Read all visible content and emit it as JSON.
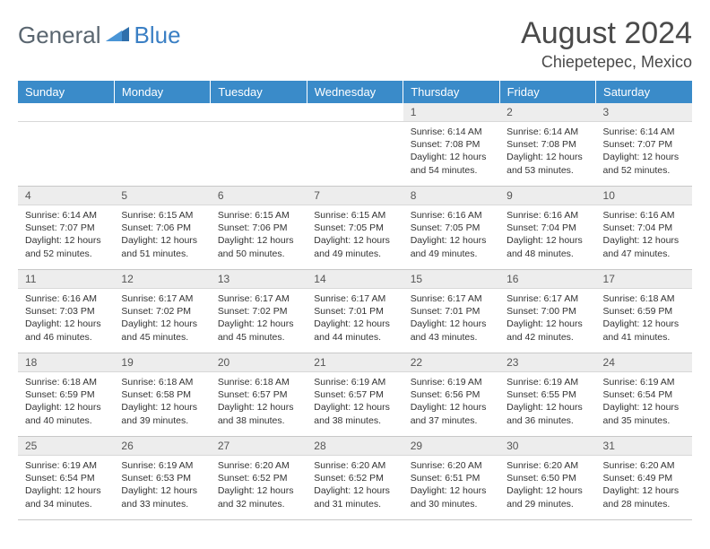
{
  "logo": {
    "text1": "General",
    "text2": "Blue"
  },
  "title": "August 2024",
  "location": "Chiepetepec, Mexico",
  "colors": {
    "header_bg": "#3a8bc9",
    "header_text": "#ffffff",
    "daynum_bg": "#ededed",
    "logo_gray": "#5a6670",
    "logo_blue": "#3a7fc4"
  },
  "weekdays": [
    "Sunday",
    "Monday",
    "Tuesday",
    "Wednesday",
    "Thursday",
    "Friday",
    "Saturday"
  ],
  "weeks": [
    [
      null,
      null,
      null,
      null,
      {
        "n": "1",
        "sr": "6:14 AM",
        "ss": "7:08 PM",
        "dl": "12 hours and 54 minutes."
      },
      {
        "n": "2",
        "sr": "6:14 AM",
        "ss": "7:08 PM",
        "dl": "12 hours and 53 minutes."
      },
      {
        "n": "3",
        "sr": "6:14 AM",
        "ss": "7:07 PM",
        "dl": "12 hours and 52 minutes."
      }
    ],
    [
      {
        "n": "4",
        "sr": "6:14 AM",
        "ss": "7:07 PM",
        "dl": "12 hours and 52 minutes."
      },
      {
        "n": "5",
        "sr": "6:15 AM",
        "ss": "7:06 PM",
        "dl": "12 hours and 51 minutes."
      },
      {
        "n": "6",
        "sr": "6:15 AM",
        "ss": "7:06 PM",
        "dl": "12 hours and 50 minutes."
      },
      {
        "n": "7",
        "sr": "6:15 AM",
        "ss": "7:05 PM",
        "dl": "12 hours and 49 minutes."
      },
      {
        "n": "8",
        "sr": "6:16 AM",
        "ss": "7:05 PM",
        "dl": "12 hours and 49 minutes."
      },
      {
        "n": "9",
        "sr": "6:16 AM",
        "ss": "7:04 PM",
        "dl": "12 hours and 48 minutes."
      },
      {
        "n": "10",
        "sr": "6:16 AM",
        "ss": "7:04 PM",
        "dl": "12 hours and 47 minutes."
      }
    ],
    [
      {
        "n": "11",
        "sr": "6:16 AM",
        "ss": "7:03 PM",
        "dl": "12 hours and 46 minutes."
      },
      {
        "n": "12",
        "sr": "6:17 AM",
        "ss": "7:02 PM",
        "dl": "12 hours and 45 minutes."
      },
      {
        "n": "13",
        "sr": "6:17 AM",
        "ss": "7:02 PM",
        "dl": "12 hours and 45 minutes."
      },
      {
        "n": "14",
        "sr": "6:17 AM",
        "ss": "7:01 PM",
        "dl": "12 hours and 44 minutes."
      },
      {
        "n": "15",
        "sr": "6:17 AM",
        "ss": "7:01 PM",
        "dl": "12 hours and 43 minutes."
      },
      {
        "n": "16",
        "sr": "6:17 AM",
        "ss": "7:00 PM",
        "dl": "12 hours and 42 minutes."
      },
      {
        "n": "17",
        "sr": "6:18 AM",
        "ss": "6:59 PM",
        "dl": "12 hours and 41 minutes."
      }
    ],
    [
      {
        "n": "18",
        "sr": "6:18 AM",
        "ss": "6:59 PM",
        "dl": "12 hours and 40 minutes."
      },
      {
        "n": "19",
        "sr": "6:18 AM",
        "ss": "6:58 PM",
        "dl": "12 hours and 39 minutes."
      },
      {
        "n": "20",
        "sr": "6:18 AM",
        "ss": "6:57 PM",
        "dl": "12 hours and 38 minutes."
      },
      {
        "n": "21",
        "sr": "6:19 AM",
        "ss": "6:57 PM",
        "dl": "12 hours and 38 minutes."
      },
      {
        "n": "22",
        "sr": "6:19 AM",
        "ss": "6:56 PM",
        "dl": "12 hours and 37 minutes."
      },
      {
        "n": "23",
        "sr": "6:19 AM",
        "ss": "6:55 PM",
        "dl": "12 hours and 36 minutes."
      },
      {
        "n": "24",
        "sr": "6:19 AM",
        "ss": "6:54 PM",
        "dl": "12 hours and 35 minutes."
      }
    ],
    [
      {
        "n": "25",
        "sr": "6:19 AM",
        "ss": "6:54 PM",
        "dl": "12 hours and 34 minutes."
      },
      {
        "n": "26",
        "sr": "6:19 AM",
        "ss": "6:53 PM",
        "dl": "12 hours and 33 minutes."
      },
      {
        "n": "27",
        "sr": "6:20 AM",
        "ss": "6:52 PM",
        "dl": "12 hours and 32 minutes."
      },
      {
        "n": "28",
        "sr": "6:20 AM",
        "ss": "6:52 PM",
        "dl": "12 hours and 31 minutes."
      },
      {
        "n": "29",
        "sr": "6:20 AM",
        "ss": "6:51 PM",
        "dl": "12 hours and 30 minutes."
      },
      {
        "n": "30",
        "sr": "6:20 AM",
        "ss": "6:50 PM",
        "dl": "12 hours and 29 minutes."
      },
      {
        "n": "31",
        "sr": "6:20 AM",
        "ss": "6:49 PM",
        "dl": "12 hours and 28 minutes."
      }
    ]
  ],
  "labels": {
    "sunrise": "Sunrise:",
    "sunset": "Sunset:",
    "daylight": "Daylight:"
  }
}
